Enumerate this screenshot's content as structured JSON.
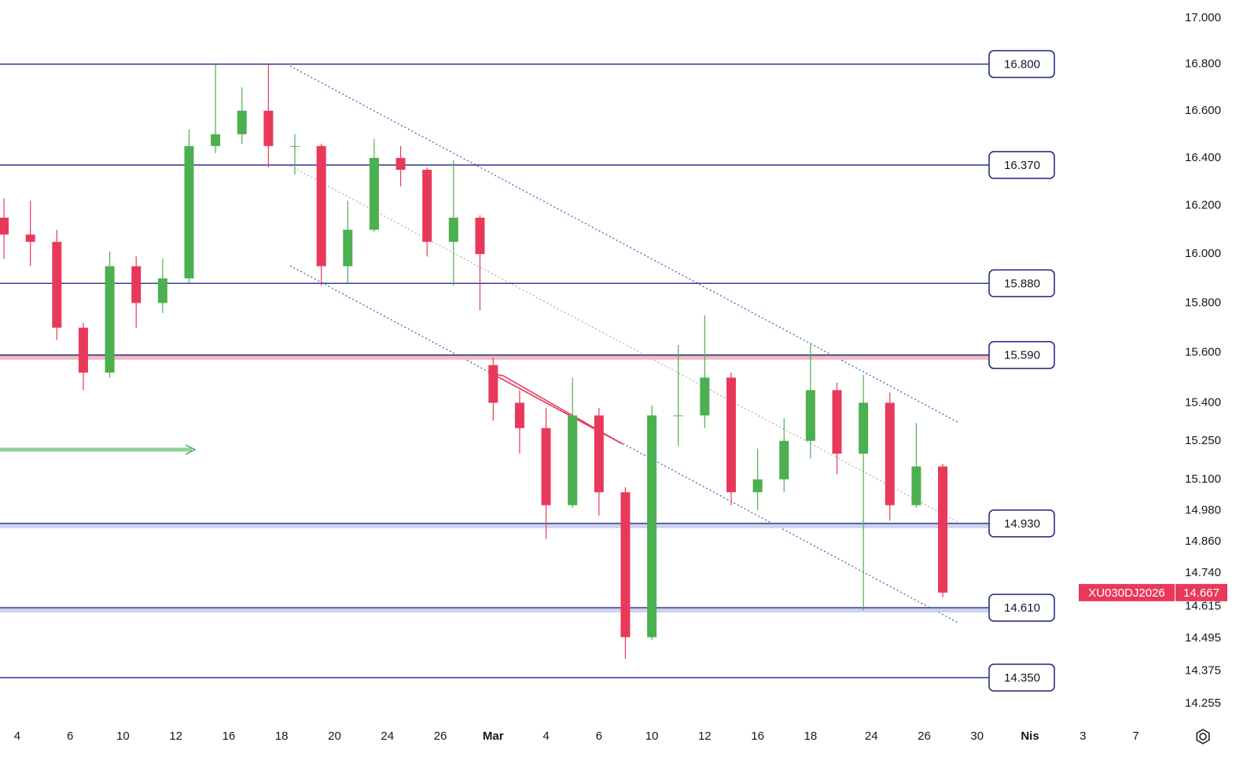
{
  "chart_data": {
    "type": "candlestick",
    "symbol": "XU030DJ2026",
    "x": [
      -0.5,
      0.5,
      1.5,
      2.5,
      3.5,
      4.5,
      5.5,
      6.5,
      7.5,
      8.5,
      9.5,
      10.5,
      11.5,
      12.5,
      13.5,
      14.5,
      15.5,
      16.5,
      17.5,
      18,
      19,
      20,
      21,
      22,
      23,
      24,
      25,
      26,
      27,
      28,
      29,
      30,
      31,
      32,
      33,
      34,
      35
    ],
    "open": [
      16150,
      16080,
      16050,
      15700,
      15520,
      15950,
      15800,
      15900,
      16450,
      16500,
      16600,
      16450,
      16450,
      15950,
      16100,
      16400,
      16350,
      16050,
      16150,
      15550,
      15400,
      15300,
      15000,
      15350,
      15050,
      14500,
      15350,
      15350,
      15500,
      15050,
      15100,
      15250,
      15450,
      15200,
      15400,
      15000,
      15150
    ],
    "high": [
      16230,
      16220,
      16100,
      15720,
      16010,
      15990,
      15980,
      16520,
      16800,
      16700,
      16800,
      16500,
      16460,
      16220,
      16480,
      16450,
      16360,
      16390,
      16160,
      15580,
      15450,
      15380,
      15500,
      15380,
      15070,
      15390,
      15630,
      15750,
      15520,
      15220,
      15340,
      15640,
      15480,
      15510,
      15440,
      15320,
      15160
    ],
    "low": [
      15980,
      15950,
      15650,
      15450,
      15500,
      15700,
      15760,
      15880,
      16420,
      16460,
      16360,
      16330,
      15870,
      15880,
      16090,
      16280,
      15990,
      15870,
      15770,
      15330,
      15200,
      14870,
      14990,
      14960,
      14420,
      14490,
      15230,
      15300,
      15000,
      14980,
      15050,
      15180,
      15120,
      14600,
      14940,
      14990,
      14650
    ],
    "close": [
      16080,
      16050,
      15700,
      15520,
      15950,
      15800,
      15900,
      16450,
      16500,
      16600,
      16450,
      16450,
      15950,
      16100,
      16400,
      16350,
      16050,
      16150,
      16000,
      15400,
      15300,
      15000,
      15350,
      15050,
      14500,
      15350,
      15350,
      15500,
      15050,
      15100,
      15250,
      15450,
      15200,
      15400,
      15000,
      15150,
      14667
    ],
    "up_color": "#4caf50",
    "down_color": "#e8395a",
    "log_scale": true,
    "ylim": [
      17079,
      14183
    ],
    "yticks": [
      {
        "value": 17000,
        "label": "17.000"
      },
      {
        "value": 16800,
        "label": "16.800"
      },
      {
        "value": 16600,
        "label": "16.600"
      },
      {
        "value": 16400,
        "label": "16.400"
      },
      {
        "value": 16200,
        "label": "16.200"
      },
      {
        "value": 16000,
        "label": "16.000"
      },
      {
        "value": 15800,
        "label": "15.800"
      },
      {
        "value": 15600,
        "label": "15.600"
      },
      {
        "value": 15400,
        "label": "15.400"
      },
      {
        "value": 15250,
        "label": "15.250"
      },
      {
        "value": 15100,
        "label": "15.100"
      },
      {
        "value": 14980,
        "label": "14.980"
      },
      {
        "value": 14860,
        "label": "14.860"
      },
      {
        "value": 14740,
        "label": "14.740"
      },
      {
        "value": 14615,
        "label": "14.615"
      },
      {
        "value": 14495,
        "label": "14.495"
      },
      {
        "value": 14375,
        "label": "14.375"
      },
      {
        "value": 14255,
        "label": "14.255"
      }
    ],
    "xlim": [
      -0.65,
      43.8
    ],
    "xticks": [
      {
        "value": 0,
        "label": "4"
      },
      {
        "value": 2,
        "label": "6"
      },
      {
        "value": 4,
        "label": "10"
      },
      {
        "value": 6,
        "label": "12"
      },
      {
        "value": 8,
        "label": "16"
      },
      {
        "value": 10,
        "label": "18"
      },
      {
        "value": 12,
        "label": "20"
      },
      {
        "value": 14,
        "label": "24"
      },
      {
        "value": 16,
        "label": "26"
      },
      {
        "value": 18,
        "label": "Mar"
      },
      {
        "value": 20,
        "label": "4"
      },
      {
        "value": 22,
        "label": "6"
      },
      {
        "value": 24,
        "label": "10"
      },
      {
        "value": 26,
        "label": "12"
      },
      {
        "value": 28,
        "label": "16"
      },
      {
        "value": 30,
        "label": "18"
      },
      {
        "value": 32.3,
        "label": "24"
      },
      {
        "value": 34.3,
        "label": "26"
      },
      {
        "value": 36.3,
        "label": "30"
      },
      {
        "value": 38.3,
        "label": "Nis"
      },
      {
        "value": 40.3,
        "label": "3"
      },
      {
        "value": 42.3,
        "label": "7"
      }
    ],
    "levels": [
      {
        "value": 16800,
        "label": "16.800"
      },
      {
        "value": 16370,
        "label": "16.370"
      },
      {
        "value": 15880,
        "label": "15.880"
      },
      {
        "value": 15590,
        "label": "15.590",
        "band_color": "#f3b9c6"
      },
      {
        "value": 14930,
        "label": "14.930",
        "band_color": "#cfd2ee"
      },
      {
        "value": 14610,
        "label": "14.610",
        "band_color": "#cfd2ee"
      },
      {
        "value": 14350,
        "label": "14.350"
      }
    ],
    "level_color": "#1a237e",
    "last_price": {
      "value": 14667,
      "label": "14.667"
    }
  }
}
